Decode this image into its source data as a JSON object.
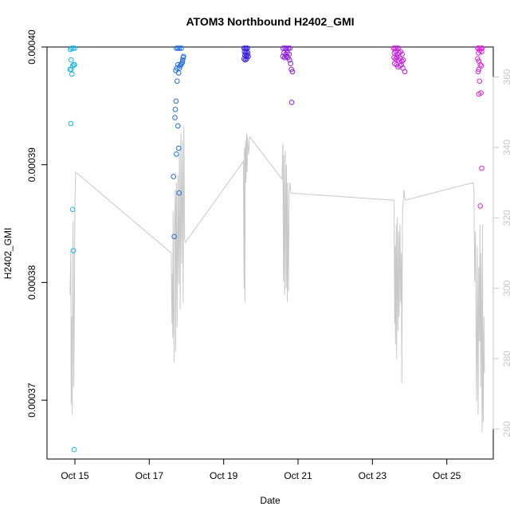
{
  "chart_data": {
    "type": "scatter",
    "title": "ATOM3 Northbound H2402_GMI",
    "xlabel": "Date",
    "ylabel": "H2402_GMI",
    "x_ticks": [
      {
        "value": 14.85,
        "label": "Oct 15"
      },
      {
        "value": 16.85,
        "label": "Oct 17"
      },
      {
        "value": 18.85,
        "label": "Oct 19"
      },
      {
        "value": 20.85,
        "label": "Oct 21"
      },
      {
        "value": 22.85,
        "label": "Oct 23"
      },
      {
        "value": 24.85,
        "label": "Oct 25"
      }
    ],
    "xlim": [
      14.1,
      26.1
    ],
    "ylim": [
      0.000365,
      0.0004
    ],
    "y_ticks": [
      {
        "value": 0.00037,
        "label": "0.00037"
      },
      {
        "value": 0.00038,
        "label": "0.00038"
      },
      {
        "value": 0.00039,
        "label": "0.00039"
      },
      {
        "value": 0.0004,
        "label": "0.00040"
      }
    ],
    "y2_ticks": [
      {
        "value": 260,
        "label": "260"
      },
      {
        "value": 280,
        "label": "280"
      },
      {
        "value": 300,
        "label": "300"
      },
      {
        "value": 320,
        "label": "320"
      },
      {
        "value": 340,
        "label": "340"
      },
      {
        "value": 360,
        "label": "360"
      }
    ],
    "y2lim": [
      251.5,
      368.5
    ],
    "grid": false,
    "colors": {
      "axis": "#000000",
      "right_axis": "#c8c8c8",
      "line": "#c8c8c8",
      "point_cyan": "#17b6e8",
      "point_blue": "#1f6de6",
      "point_indigo": "#3b22e4",
      "point_purple": "#8a1ee6",
      "point_magenta": "#e31ee0"
    },
    "scatter_groups": [
      {
        "color": "#17b6e8",
        "points": [
          [
            14.73,
            0.0003998
          ],
          [
            14.76,
            0.0003999
          ],
          [
            14.8,
            0.0003999
          ],
          [
            14.84,
            0.0003999
          ],
          [
            14.75,
            0.0003989
          ],
          [
            14.72,
            0.0003981
          ],
          [
            14.75,
            0.0003981
          ],
          [
            14.79,
            0.0003984
          ],
          [
            14.82,
            0.0003985
          ],
          [
            14.84,
            0.0003985
          ],
          [
            14.77,
            0.0003977
          ],
          [
            14.74,
            0.0003935
          ],
          [
            14.79,
            0.0003862
          ],
          [
            14.81,
            0.0003827
          ],
          [
            14.83,
            0.0003658
          ]
        ]
      },
      {
        "color": "#1f6de6",
        "points": [
          [
            17.58,
            0.0003999
          ],
          [
            17.62,
            0.0003999
          ],
          [
            17.66,
            0.0003999
          ],
          [
            17.71,
            0.0003999
          ],
          [
            17.56,
            0.000398
          ],
          [
            17.59,
            0.0003982
          ],
          [
            17.62,
            0.0003985
          ],
          [
            17.64,
            0.0003978
          ],
          [
            17.66,
            0.0003982
          ],
          [
            17.68,
            0.0003984
          ],
          [
            17.7,
            0.0003985
          ],
          [
            17.72,
            0.0003986
          ],
          [
            17.74,
            0.0003987
          ],
          [
            17.75,
            0.0003989
          ],
          [
            17.76,
            0.0003991
          ],
          [
            17.77,
            0.0003992
          ],
          [
            17.6,
            0.0003971
          ],
          [
            17.57,
            0.0003954
          ],
          [
            17.55,
            0.0003947
          ],
          [
            17.54,
            0.000394
          ],
          [
            17.62,
            0.0003933
          ],
          [
            17.64,
            0.0003914
          ],
          [
            17.58,
            0.0003909
          ],
          [
            17.5,
            0.000389
          ],
          [
            17.65,
            0.0003876
          ],
          [
            17.52,
            0.0003839
          ]
        ]
      },
      {
        "color": "#3b22e4",
        "points": [
          [
            19.4,
            0.0003999
          ],
          [
            19.43,
            0.0003999
          ],
          [
            19.46,
            0.0003999
          ],
          [
            19.49,
            0.0003999
          ],
          [
            19.41,
            0.0003996
          ],
          [
            19.44,
            0.0003995
          ],
          [
            19.47,
            0.0003996
          ],
          [
            19.5,
            0.0003995
          ],
          [
            19.42,
            0.0003993
          ],
          [
            19.45,
            0.0003992
          ],
          [
            19.48,
            0.0003993
          ],
          [
            19.51,
            0.0003992
          ],
          [
            19.4,
            0.000399
          ],
          [
            19.43,
            0.0003989
          ],
          [
            19.47,
            0.000399
          ]
        ]
      },
      {
        "color": "#8a1ee6",
        "points": [
          [
            20.45,
            0.0003999
          ],
          [
            20.5,
            0.0003999
          ],
          [
            20.54,
            0.0003999
          ],
          [
            20.59,
            0.0003999
          ],
          [
            20.63,
            0.0003999
          ],
          [
            20.47,
            0.0003995
          ],
          [
            20.52,
            0.0003994
          ],
          [
            20.56,
            0.0003995
          ],
          [
            20.61,
            0.0003994
          ],
          [
            20.44,
            0.0003992
          ],
          [
            20.49,
            0.0003991
          ],
          [
            20.53,
            0.0003992
          ],
          [
            20.58,
            0.0003991
          ],
          [
            20.62,
            0.0003989
          ],
          [
            20.65,
            0.0003986
          ],
          [
            20.67,
            0.0003981
          ],
          [
            20.7,
            0.0003979
          ],
          [
            20.68,
            0.0003953
          ]
        ]
      },
      {
        "color": "#c71ee3",
        "points": [
          [
            23.42,
            0.0003999
          ],
          [
            23.46,
            0.0003999
          ],
          [
            23.5,
            0.0003999
          ],
          [
            23.55,
            0.0003999
          ],
          [
            23.44,
            0.0003995
          ],
          [
            23.48,
            0.0003996
          ],
          [
            23.52,
            0.0003994
          ],
          [
            23.57,
            0.0003995
          ],
          [
            23.61,
            0.0003996
          ],
          [
            23.65,
            0.0003994
          ],
          [
            23.43,
            0.0003991
          ],
          [
            23.47,
            0.000399
          ],
          [
            23.51,
            0.0003991
          ],
          [
            23.55,
            0.0003989
          ],
          [
            23.6,
            0.000399
          ],
          [
            23.64,
            0.0003988
          ],
          [
            23.68,
            0.0003989
          ],
          [
            23.45,
            0.0003986
          ],
          [
            23.5,
            0.0003985
          ],
          [
            23.54,
            0.0003983
          ],
          [
            23.59,
            0.0003984
          ],
          [
            23.63,
            0.0003985
          ],
          [
            23.67,
            0.0003982
          ],
          [
            23.72,
            0.0003979
          ]
        ]
      },
      {
        "color": "#e31ee0",
        "points": [
          [
            25.68,
            0.0003999
          ],
          [
            25.72,
            0.0003999
          ],
          [
            25.77,
            0.0003999
          ],
          [
            25.8,
            0.0003999
          ],
          [
            25.7,
            0.0003995
          ],
          [
            25.74,
            0.0003997
          ],
          [
            25.79,
            0.0003996
          ],
          [
            25.68,
            0.000399
          ],
          [
            25.71,
            0.0003988
          ],
          [
            25.75,
            0.0003985
          ],
          [
            25.78,
            0.0003984
          ],
          [
            25.71,
            0.0003981
          ],
          [
            25.69,
            0.0003979
          ],
          [
            25.73,
            0.0003971
          ],
          [
            25.71,
            0.000396
          ],
          [
            25.77,
            0.0003961
          ],
          [
            25.79,
            0.0003897
          ],
          [
            25.75,
            0.0003865
          ]
        ]
      }
    ],
    "line_series": {
      "axis": "right",
      "points": [
        [
          14.72,
          298
        ],
        [
          14.74,
          311
        ],
        [
          14.75,
          267
        ],
        [
          14.77,
          292
        ],
        [
          14.78,
          264
        ],
        [
          14.79,
          298
        ],
        [
          14.8,
          319
        ],
        [
          14.82,
          272
        ],
        [
          14.84,
          300
        ],
        [
          14.85,
          325
        ],
        [
          14.86,
          329
        ],
        [
          14.87,
          333
        ],
        [
          17.44,
          310
        ],
        [
          17.46,
          290
        ],
        [
          17.47,
          304
        ],
        [
          17.48,
          286
        ],
        [
          17.49,
          322
        ],
        [
          17.5,
          296
        ],
        [
          17.52,
          279
        ],
        [
          17.53,
          318
        ],
        [
          17.55,
          328
        ],
        [
          17.56,
          282
        ],
        [
          17.57,
          311
        ],
        [
          17.58,
          330
        ],
        [
          17.6,
          289
        ],
        [
          17.62,
          332
        ],
        [
          17.64,
          301
        ],
        [
          17.66,
          338
        ],
        [
          17.68,
          294
        ],
        [
          17.7,
          344
        ],
        [
          17.72,
          307
        ],
        [
          17.74,
          342
        ],
        [
          17.76,
          296
        ],
        [
          17.78,
          346
        ],
        [
          17.8,
          314
        ],
        [
          17.82,
          313
        ],
        [
          19.38,
          336
        ],
        [
          19.4,
          300
        ],
        [
          19.41,
          340
        ],
        [
          19.42,
          296
        ],
        [
          19.43,
          338
        ],
        [
          19.44,
          342
        ],
        [
          19.45,
          330
        ],
        [
          19.47,
          344
        ],
        [
          19.48,
          333
        ],
        [
          19.49,
          343
        ],
        [
          19.52,
          338
        ],
        [
          19.55,
          343
        ],
        [
          20.42,
          331
        ],
        [
          20.44,
          341
        ],
        [
          20.46,
          302
        ],
        [
          20.47,
          338
        ],
        [
          20.49,
          298
        ],
        [
          20.51,
          339
        ],
        [
          20.53,
          300
        ],
        [
          20.54,
          335
        ],
        [
          20.56,
          296
        ],
        [
          20.57,
          330
        ],
        [
          20.59,
          299
        ],
        [
          20.61,
          327
        ],
        [
          20.63,
          330
        ],
        [
          20.66,
          327
        ],
        [
          23.43,
          325
        ],
        [
          23.44,
          304
        ],
        [
          23.45,
          290
        ],
        [
          23.46,
          312
        ],
        [
          23.47,
          284
        ],
        [
          23.49,
          318
        ],
        [
          23.5,
          280
        ],
        [
          23.52,
          320
        ],
        [
          23.54,
          288
        ],
        [
          23.56,
          316
        ],
        [
          23.57,
          292
        ],
        [
          23.59,
          318
        ],
        [
          23.61,
          296
        ],
        [
          23.63,
          310
        ],
        [
          23.64,
          273
        ],
        [
          23.66,
          322
        ],
        [
          23.68,
          325
        ],
        [
          23.7,
          328
        ],
        [
          23.73,
          325
        ],
        [
          25.56,
          330
        ],
        [
          25.58,
          328
        ],
        [
          25.6,
          302
        ],
        [
          25.62,
          316
        ],
        [
          25.64,
          281
        ],
        [
          25.65,
          268
        ],
        [
          25.67,
          312
        ],
        [
          25.69,
          264
        ],
        [
          25.71,
          306
        ],
        [
          25.73,
          285
        ],
        [
          25.74,
          318
        ],
        [
          25.76,
          272
        ],
        [
          25.77,
          310
        ],
        [
          25.78,
          296
        ],
        [
          25.8,
          259
        ],
        [
          25.81,
          318
        ],
        [
          25.82,
          272
        ],
        [
          25.83,
          262
        ],
        [
          25.84,
          283
        ],
        [
          25.85,
          292
        ],
        [
          25.86,
          276
        ]
      ]
    }
  }
}
